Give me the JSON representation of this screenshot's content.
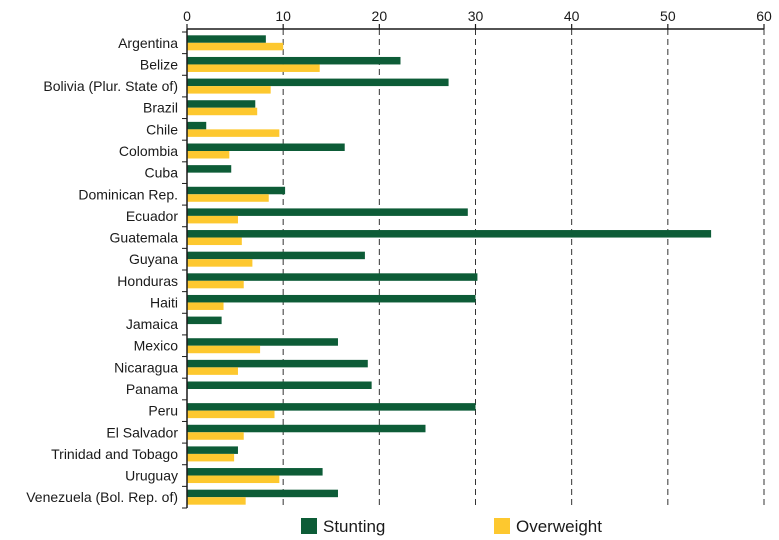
{
  "chart_data": {
    "type": "bar",
    "orientation": "horizontal",
    "title": "",
    "xlabel": "",
    "ylabel": "",
    "xlim": [
      0,
      60
    ],
    "x_ticks": [
      0,
      10,
      20,
      30,
      40,
      50,
      60
    ],
    "x_axis_position": "top",
    "grid": "vertical dashed",
    "legend_position": "bottom-center",
    "categories": [
      "Argentina",
      "Belize",
      "Bolivia (Plur. State of)",
      "Brazil",
      "Chile",
      "Colombia",
      "Cuba",
      "Dominican Rep.",
      "Ecuador",
      "Guatemala",
      "Guyana",
      "Honduras",
      "Haiti",
      "Jamaica",
      "Mexico",
      "Nicaragua",
      "Panama",
      "Peru",
      "El Salvador",
      "Trinidad and Tobago",
      "Uruguay",
      "Venezuela (Bol. Rep. of)"
    ],
    "series": [
      {
        "name": "Stunting",
        "color": "#0d5c37",
        "values": [
          8.2,
          22.2,
          27.2,
          7.1,
          2.0,
          16.4,
          4.6,
          10.2,
          29.2,
          54.5,
          18.5,
          30.2,
          30.0,
          3.6,
          15.7,
          18.8,
          19.2,
          30.0,
          24.8,
          5.3,
          14.1,
          15.7
        ]
      },
      {
        "name": "Overweight",
        "color": "#fdc82f",
        "values": [
          10.0,
          13.8,
          8.7,
          7.3,
          9.6,
          4.4,
          null,
          8.5,
          5.3,
          5.7,
          6.8,
          5.9,
          3.8,
          null,
          7.6,
          5.3,
          null,
          9.1,
          5.9,
          4.9,
          9.6,
          6.1
        ]
      }
    ]
  }
}
